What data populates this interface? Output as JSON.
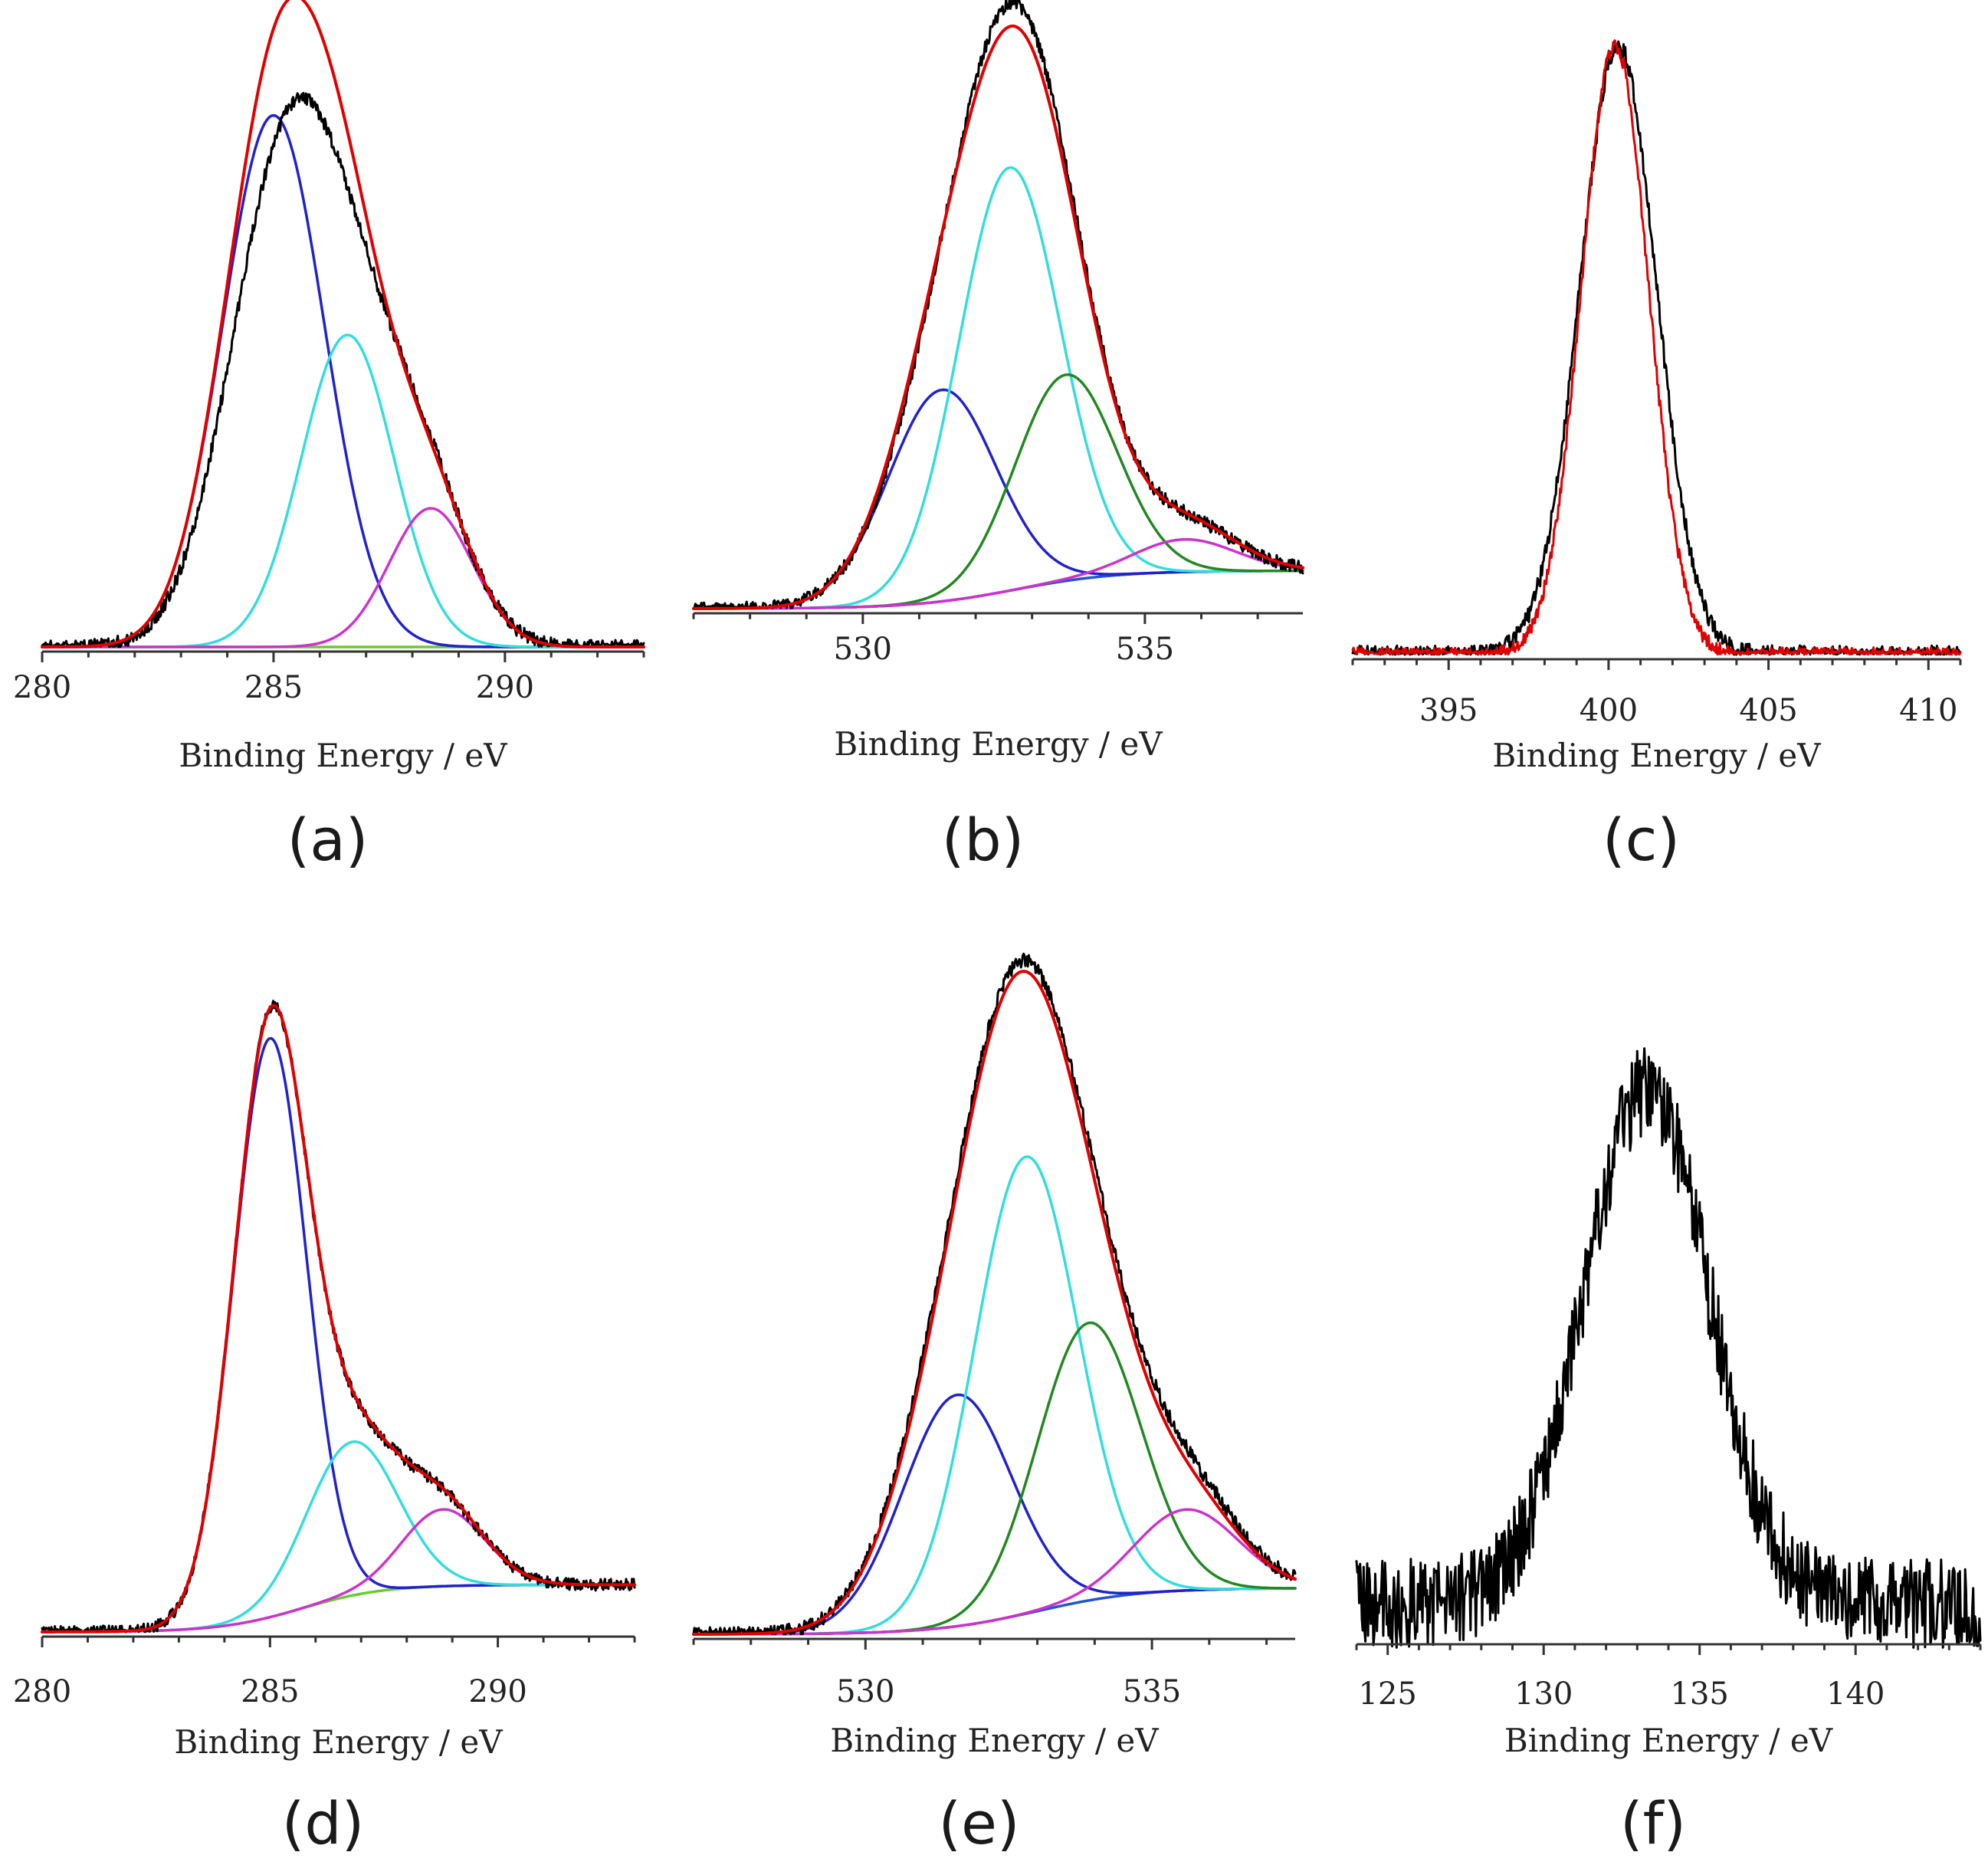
{
  "chart_data": [
    {
      "panel": "(a)",
      "type": "line",
      "xlabel": "Binding Energy / eV",
      "ylabel": "",
      "xlim": [
        280,
        293
      ],
      "ylim": [
        0,
        1.08
      ],
      "xticks": [
        280,
        285,
        290
      ],
      "baseline": 0.0,
      "series": [
        {
          "name": "experimental",
          "kind": "raw",
          "color": "#000000",
          "noise": 0.012,
          "components": [
            [
              285.1,
              0.72,
              1.15
            ],
            [
              286.6,
              0.44,
              1.1
            ],
            [
              288.3,
              0.24,
              0.95
            ]
          ]
        },
        {
          "name": "fit envelope",
          "kind": "envelope",
          "color": "#e00000",
          "components": [
            [
              285.0,
              0.92,
              1.1
            ],
            [
              286.6,
              0.54,
              1.0
            ],
            [
              288.4,
              0.24,
              0.9
            ]
          ]
        },
        {
          "name": "component 1",
          "kind": "peak",
          "color": "#2222cc",
          "center": 285.0,
          "height": 0.92,
          "width": 1.1
        },
        {
          "name": "component 2",
          "kind": "peak",
          "color": "#33dddd",
          "center": 286.6,
          "height": 0.54,
          "width": 1.0
        },
        {
          "name": "component 3",
          "kind": "peak",
          "color": "#cc33cc",
          "center": 288.4,
          "height": 0.24,
          "width": 0.9
        },
        {
          "name": "background",
          "kind": "flat",
          "color": "#66cc33",
          "level": 0.0
        }
      ]
    },
    {
      "panel": "(b)",
      "type": "line",
      "xlabel": "Binding Energy / eV",
      "ylabel": "",
      "xlim": [
        527,
        537.8
      ],
      "ylim": [
        0,
        1.08
      ],
      "xticks": [
        530,
        535
      ],
      "baseline": 0.0,
      "series": [
        {
          "name": "experimental",
          "kind": "raw",
          "color": "#000000",
          "noise": 0.012,
          "components": [
            [
              531.5,
              0.39,
              1.0
            ],
            [
              532.6,
              0.64,
              0.9
            ],
            [
              533.5,
              0.38,
              0.9
            ],
            [
              535.7,
              0.09,
              0.9
            ]
          ],
          "background": [
            0.0,
            0.07
          ]
        },
        {
          "name": "fit envelope",
          "kind": "envelope",
          "color": "#e00000",
          "components": [
            [
              531.4,
              0.39,
              0.95
            ],
            [
              532.6,
              0.64,
              0.9
            ],
            [
              533.5,
              0.37,
              0.9
            ],
            [
              535.7,
              0.09,
              0.9
            ]
          ],
          "background": [
            0.0,
            0.07
          ]
        },
        {
          "name": "component 1",
          "kind": "peak",
          "color": "#2222cc",
          "center": 531.4,
          "height": 0.39,
          "width": 0.95,
          "background": [
            0.0,
            0.07
          ]
        },
        {
          "name": "component 2",
          "kind": "peak",
          "color": "#33dddd",
          "center": 532.6,
          "height": 0.78,
          "width": 0.9,
          "background": [
            0.0,
            0.07
          ]
        },
        {
          "name": "component 3",
          "kind": "peak",
          "color": "#228822",
          "center": 533.6,
          "height": 0.38,
          "width": 0.9,
          "background": [
            0.0,
            0.07
          ]
        },
        {
          "name": "component 4",
          "kind": "peak",
          "color": "#cc33cc",
          "center": 535.7,
          "height": 0.06,
          "width": 0.9,
          "background": [
            0.0,
            0.07
          ]
        },
        {
          "name": "background",
          "kind": "shirley",
          "color": "#2255cc",
          "background": [
            0.0,
            0.07
          ]
        }
      ]
    },
    {
      "panel": "(c)",
      "type": "line",
      "xlabel": "Binding Energy / eV",
      "ylabel": "",
      "xlim": [
        392,
        411
      ],
      "ylim": [
        0,
        1.05
      ],
      "xticks": [
        395,
        400,
        405,
        410
      ],
      "baseline": 0.0,
      "series": [
        {
          "name": "experimental",
          "kind": "raw",
          "color": "#000000",
          "noise": 0.015,
          "components": [
            [
              400.3,
              1.0,
              1.2
            ]
          ]
        },
        {
          "name": "fit",
          "kind": "raw",
          "color": "#e00000",
          "noise": 0.012,
          "components": [
            [
              400.2,
              1.0,
              1.05
            ]
          ]
        }
      ]
    },
    {
      "panel": "(d)",
      "type": "line",
      "xlabel": "Binding Energy / eV",
      "ylabel": "",
      "xlim": [
        280,
        293
      ],
      "ylim": [
        0,
        1.05
      ],
      "xticks": [
        280,
        285,
        290
      ],
      "baseline": 0.0,
      "series": [
        {
          "name": "experimental",
          "kind": "raw",
          "color": "#000000",
          "noise": 0.01,
          "components": [
            [
              285.0,
              0.98,
              0.8
            ],
            [
              286.8,
              0.26,
              1.0
            ],
            [
              288.8,
              0.13,
              0.9
            ]
          ],
          "background": [
            0.0,
            0.08
          ]
        },
        {
          "name": "fit envelope",
          "kind": "envelope",
          "color": "#e00000",
          "components": [
            [
              285.0,
              0.98,
              0.8
            ],
            [
              286.8,
              0.26,
              1.0
            ],
            [
              288.8,
              0.13,
              0.9
            ]
          ],
          "background": [
            0.0,
            0.08
          ]
        },
        {
          "name": "component 1",
          "kind": "peak",
          "color": "#2222cc",
          "center": 285.0,
          "height": 0.98,
          "width": 0.8,
          "background": [
            0.0,
            0.08
          ]
        },
        {
          "name": "component 2",
          "kind": "peak",
          "color": "#33dddd",
          "center": 286.8,
          "height": 0.26,
          "width": 1.0,
          "background": [
            0.0,
            0.08
          ]
        },
        {
          "name": "component 3",
          "kind": "peak",
          "color": "#cc33cc",
          "center": 288.8,
          "height": 0.13,
          "width": 0.9,
          "background": [
            0.0,
            0.08
          ]
        },
        {
          "name": "background",
          "kind": "shirley",
          "color": "#66cc33",
          "background": [
            0.0,
            0.08
          ]
        }
      ]
    },
    {
      "panel": "(e)",
      "type": "line",
      "xlabel": "Binding Energy / eV",
      "ylabel": "",
      "xlim": [
        527,
        537.5
      ],
      "ylim": [
        0,
        1.05
      ],
      "xticks": [
        530,
        535
      ],
      "baseline": 0.0,
      "series": [
        {
          "name": "experimental",
          "kind": "raw",
          "color": "#000000",
          "noise": 0.012,
          "components": [
            [
              531.6,
              0.42,
              1.0
            ],
            [
              532.7,
              0.72,
              0.9
            ],
            [
              533.9,
              0.44,
              0.9
            ],
            [
              535.6,
              0.17,
              0.9
            ]
          ],
          "background": [
            0.0,
            0.08
          ]
        },
        {
          "name": "fit envelope",
          "kind": "envelope",
          "color": "#e00000",
          "components": [
            [
              531.6,
              0.4,
              1.0
            ],
            [
              532.7,
              0.72,
              0.9
            ],
            [
              533.9,
              0.42,
              0.9
            ],
            [
              535.6,
              0.15,
              0.9
            ]
          ],
          "background": [
            0.0,
            0.08
          ]
        },
        {
          "name": "component 1",
          "kind": "peak",
          "color": "#2222cc",
          "center": 531.6,
          "height": 0.4,
          "width": 0.95,
          "background": [
            0.0,
            0.08
          ]
        },
        {
          "name": "component 2",
          "kind": "peak",
          "color": "#33dddd",
          "center": 532.8,
          "height": 0.79,
          "width": 0.9,
          "background": [
            0.0,
            0.08
          ]
        },
        {
          "name": "component 3",
          "kind": "peak",
          "color": "#228822",
          "center": 533.9,
          "height": 0.48,
          "width": 0.9,
          "background": [
            0.0,
            0.08
          ]
        },
        {
          "name": "component 4",
          "kind": "peak",
          "color": "#cc33cc",
          "center": 535.6,
          "height": 0.14,
          "width": 0.9,
          "background": [
            0.0,
            0.08
          ]
        },
        {
          "name": "background",
          "kind": "shirley",
          "color": "#2255cc",
          "background": [
            0.0,
            0.08
          ]
        }
      ]
    },
    {
      "panel": "(f)",
      "type": "line",
      "xlabel": "Binding Energy / eV",
      "ylabel": "",
      "xlim": [
        124,
        144
      ],
      "ylim": [
        0,
        1.05
      ],
      "xticks": [
        125,
        130,
        135,
        140
      ],
      "baseline": 0.0,
      "series": [
        {
          "name": "experimental",
          "kind": "raw",
          "color": "#000000",
          "noise": 0.075,
          "components": [
            [
              133.3,
              0.86,
              2.0
            ]
          ],
          "offset": 0.06
        }
      ]
    }
  ]
}
